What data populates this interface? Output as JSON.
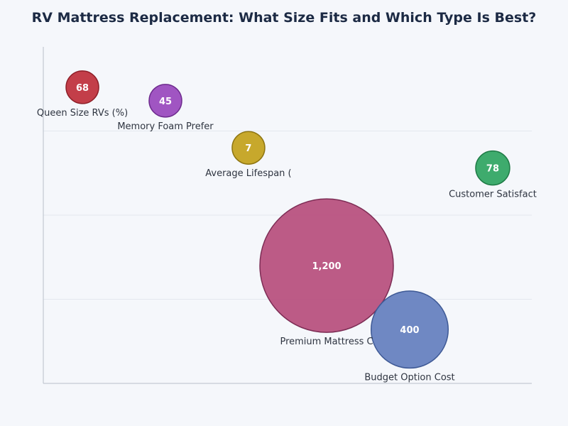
{
  "chart_data": {
    "type": "scatter",
    "title": "RV Mattress Replacement: What Size Fits and Which Type Is Best?",
    "xlabel": "",
    "ylabel": "",
    "xlim": [
      0,
      100
    ],
    "ylim": [
      0,
      100
    ],
    "grid": true,
    "legend": "none",
    "series": [
      {
        "points": [
          {
            "label": "Queen Size RVs (%)",
            "display": "68",
            "size": 68,
            "x": 8,
            "y": 88,
            "color": "#c0343f",
            "stroke": "#8e1f28"
          },
          {
            "label": "Memory Foam Prefer",
            "display": "45",
            "size": 45,
            "x": 25,
            "y": 84,
            "color": "#9b4cbf",
            "stroke": "#6e2b8e"
          },
          {
            "label": "Average Lifespan (",
            "display": "7",
            "size": 7,
            "x": 42,
            "y": 70,
            "color": "#c4a321",
            "stroke": "#8f7612"
          },
          {
            "label": "Customer Satisfact",
            "display": "78",
            "size": 78,
            "x": 92,
            "y": 64,
            "color": "#34a665",
            "stroke": "#1e7a45"
          },
          {
            "label": "Premium Mattress C",
            "display": "1,200",
            "size": 1200,
            "x": 58,
            "y": 35,
            "color": "#b8527f",
            "stroke": "#7d2d55"
          },
          {
            "label": "Budget Option Cost",
            "display": "400",
            "size": 400,
            "x": 75,
            "y": 16,
            "color": "#6782c0",
            "stroke": "#3f5a96"
          }
        ]
      }
    ]
  }
}
